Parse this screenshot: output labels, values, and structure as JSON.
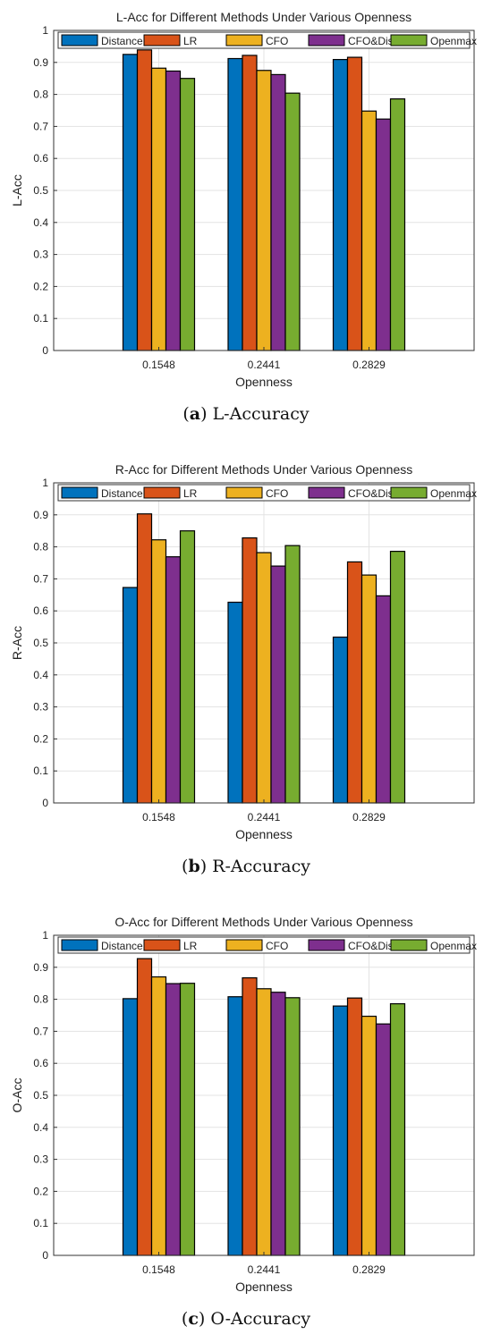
{
  "chart_data": [
    {
      "type": "bar",
      "title": "L-Acc for Different Methods Under Various Openness",
      "xlabel": "Openness",
      "ylabel": "L-Acc",
      "ylim": [
        0,
        1
      ],
      "yticks": [
        "0",
        "0.1",
        "0.2",
        "0.3",
        "0.4",
        "0.5",
        "0.6",
        "0.7",
        "0.8",
        "0.9",
        "1"
      ],
      "categories": [
        "0.1548",
        "0.2441",
        "0.2829"
      ],
      "grid": true,
      "legend_position": "top, horizontal",
      "series": [
        {
          "name": "Distance",
          "color": "#0072BD",
          "values": [
            0.925,
            0.912,
            0.909
          ]
        },
        {
          "name": "LR",
          "color": "#D95319",
          "values": [
            0.939,
            0.922,
            0.916
          ]
        },
        {
          "name": "CFO",
          "color": "#EDB120",
          "values": [
            0.882,
            0.875,
            0.748
          ]
        },
        {
          "name": "CFO&Dis",
          "color": "#7E2F8E",
          "values": [
            0.873,
            0.862,
            0.723
          ]
        },
        {
          "name": "Openmax",
          "color": "#77AC30",
          "values": [
            0.85,
            0.804,
            0.786
          ]
        }
      ],
      "caption_letter": "a",
      "caption_text": "L-Accuracy"
    },
    {
      "type": "bar",
      "title": "R-Acc for Different Methods Under Various Openness",
      "xlabel": "Openness",
      "ylabel": "R-Acc",
      "ylim": [
        0,
        1
      ],
      "yticks": [
        "0",
        "0.1",
        "0.2",
        "0.3",
        "0.4",
        "0.5",
        "0.6",
        "0.7",
        "0.8",
        "0.9",
        "1"
      ],
      "categories": [
        "0.1548",
        "0.2441",
        "0.2829"
      ],
      "grid": true,
      "legend_position": "top, horizontal",
      "series": [
        {
          "name": "Distance",
          "color": "#0072BD",
          "values": [
            0.673,
            0.627,
            0.518
          ]
        },
        {
          "name": "LR",
          "color": "#D95319",
          "values": [
            0.903,
            0.828,
            0.753
          ]
        },
        {
          "name": "CFO",
          "color": "#EDB120",
          "values": [
            0.822,
            0.782,
            0.712
          ]
        },
        {
          "name": "CFO&Dis",
          "color": "#7E2F8E",
          "values": [
            0.769,
            0.74,
            0.647
          ]
        },
        {
          "name": "Openmax",
          "color": "#77AC30",
          "values": [
            0.85,
            0.804,
            0.786
          ]
        }
      ],
      "caption_letter": "b",
      "caption_text": "R-Accuracy"
    },
    {
      "type": "bar",
      "title": "O-Acc for Different Methods Under Various Openness",
      "xlabel": "Openness",
      "ylabel": "O-Acc",
      "ylim": [
        0,
        1
      ],
      "yticks": [
        "0",
        "0.1",
        "0.2",
        "0.3",
        "0.4",
        "0.5",
        "0.6",
        "0.7",
        "0.8",
        "0.9",
        "1"
      ],
      "categories": [
        "0.1548",
        "0.2441",
        "0.2829"
      ],
      "grid": true,
      "legend_position": "top, horizontal",
      "series": [
        {
          "name": "Distance",
          "color": "#0072BD",
          "values": [
            0.802,
            0.808,
            0.779
          ]
        },
        {
          "name": "LR",
          "color": "#D95319",
          "values": [
            0.927,
            0.867,
            0.804
          ]
        },
        {
          "name": "CFO",
          "color": "#EDB120",
          "values": [
            0.87,
            0.833,
            0.747
          ]
        },
        {
          "name": "CFO&Dis",
          "color": "#7E2F8E",
          "values": [
            0.849,
            0.822,
            0.723
          ]
        },
        {
          "name": "Openmax",
          "color": "#77AC30",
          "values": [
            0.85,
            0.805,
            0.786
          ]
        }
      ],
      "caption_letter": "c",
      "caption_text": "O-Accuracy"
    }
  ]
}
